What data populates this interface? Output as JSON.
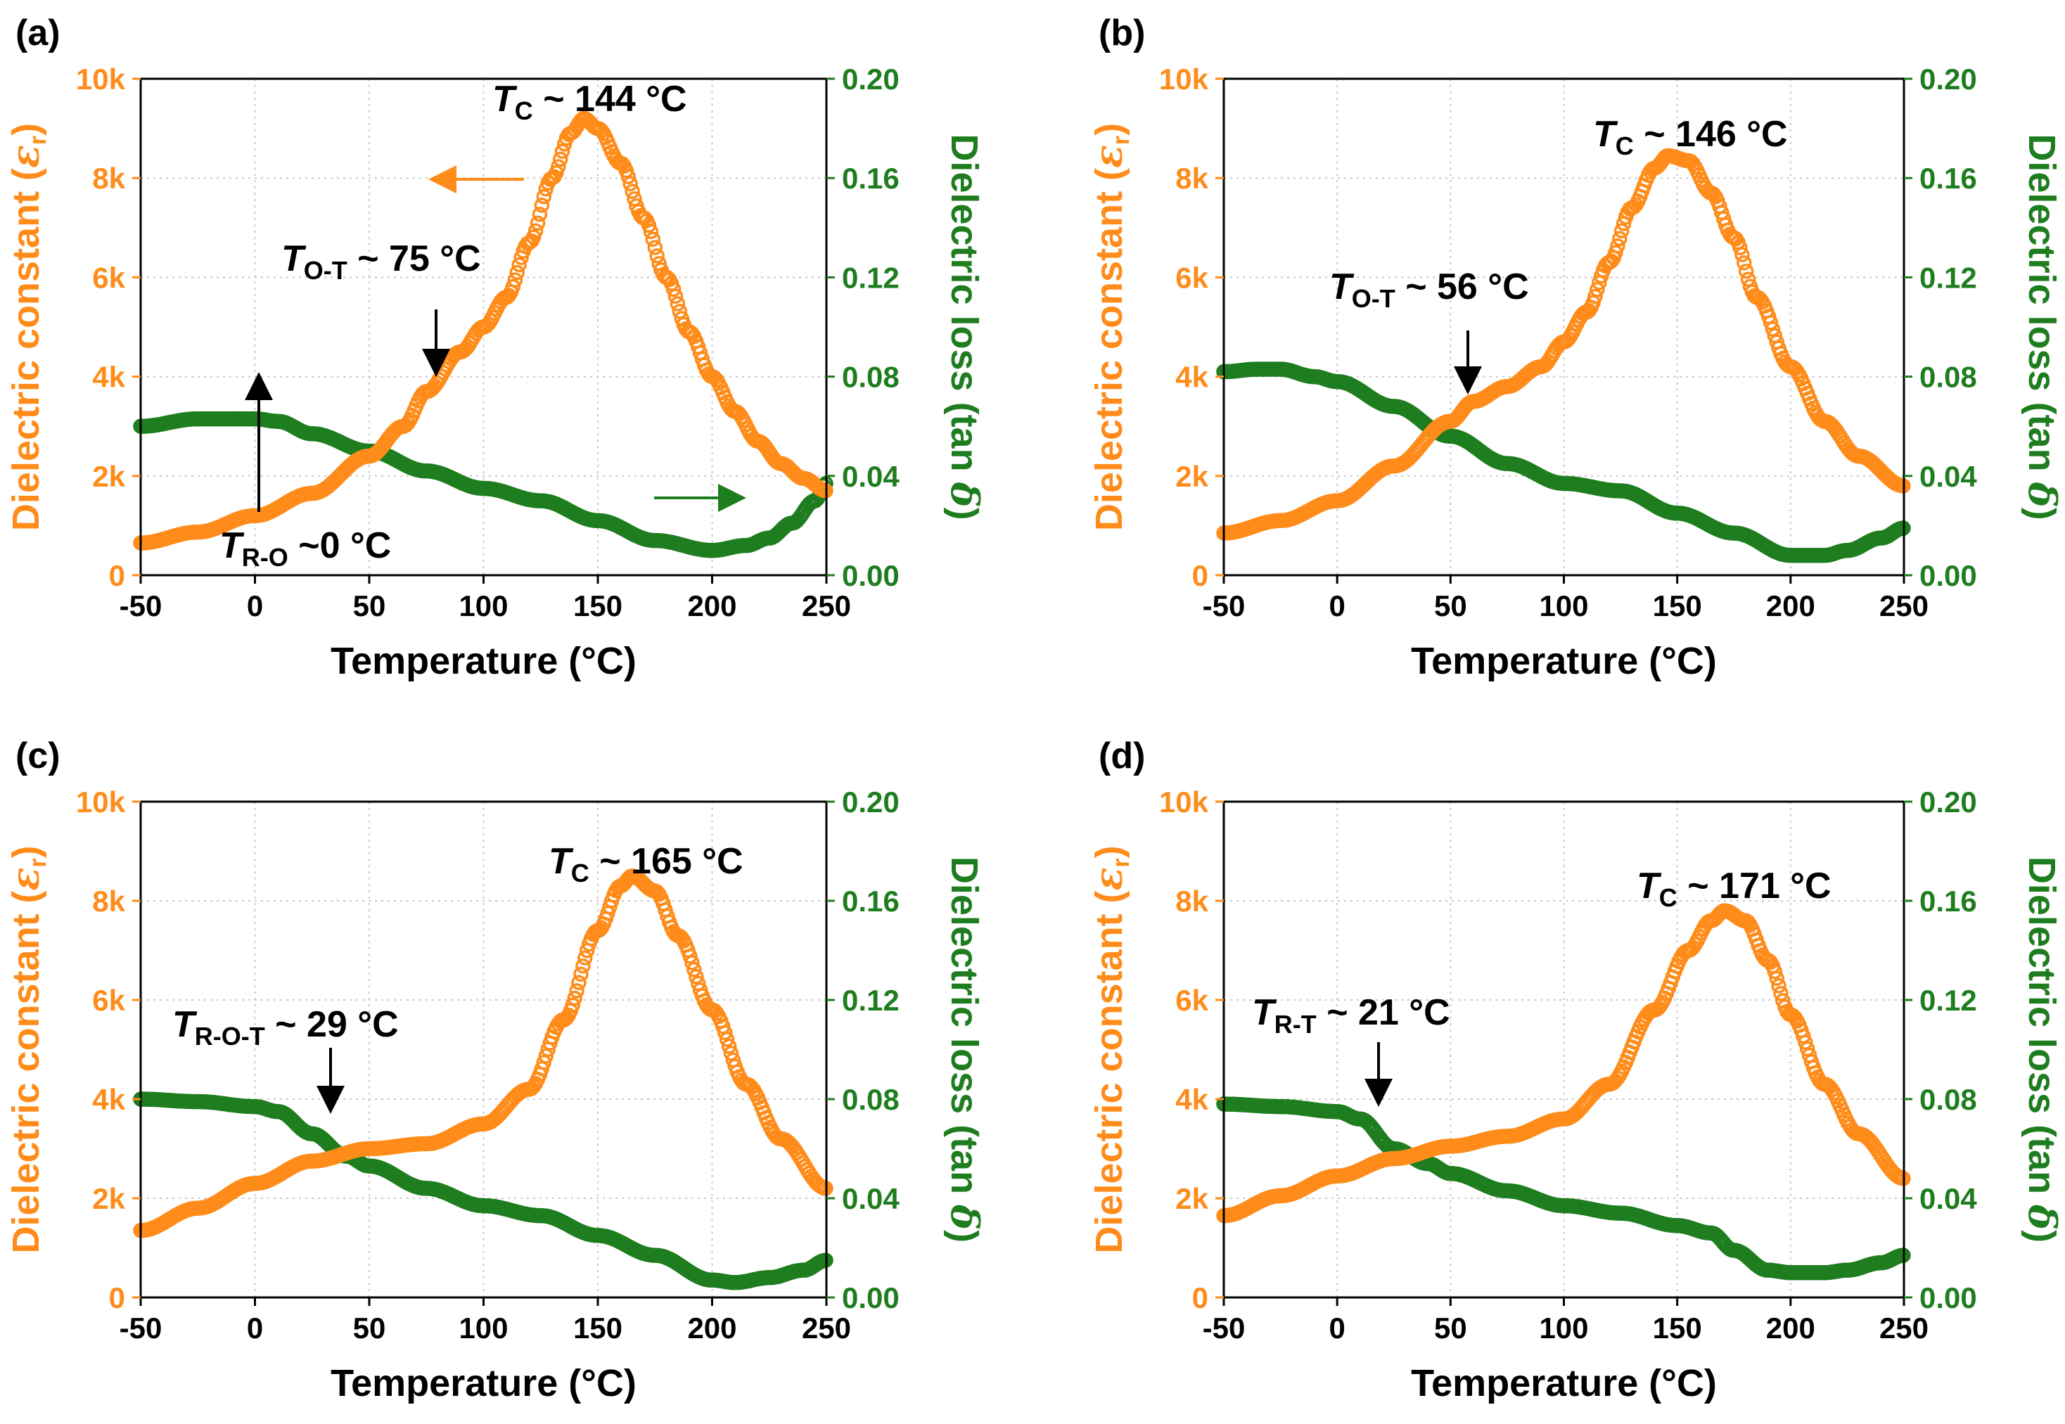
{
  "colors": {
    "eps": "#FF8C1A",
    "loss": "#1E7D1E",
    "axis": "#000000",
    "grid": "#C8C8C8",
    "arrow": "#000000"
  },
  "axes": {
    "x_label": "Temperature (°C)",
    "x_ticks": [
      "-50",
      "0",
      "50",
      "100",
      "150",
      "200",
      "250"
    ],
    "y_left_label_pre": "Dielectric constant (",
    "y_left_symbol": "ε",
    "y_left_sub": "r",
    "y_left_label_post": ")",
    "y_left_ticks": [
      "0",
      "2k",
      "4k",
      "6k",
      "8k",
      "10k"
    ],
    "y_right_label_pre": "Dielectric loss (tan ",
    "y_right_symbol": "δ",
    "y_right_label_post": ")",
    "y_right_ticks": [
      "0.00",
      "0.04",
      "0.08",
      "0.12",
      "0.16",
      "0.20"
    ]
  },
  "chart_data": [
    {
      "type": "scatter",
      "panel": "(a)",
      "xlabel": "Temperature (°C)",
      "xlim": [
        -50,
        250
      ],
      "ylabel_left": "Dielectric constant (εr)",
      "ylim_left": [
        0,
        10000
      ],
      "ylabel_right": "Dielectric loss (tan δ)",
      "ylim_right": [
        0,
        0.2
      ],
      "series": [
        {
          "name": "Dielectric constant",
          "axis": "left",
          "x": [
            -50,
            -25,
            0,
            25,
            50,
            65,
            75,
            90,
            100,
            110,
            120,
            130,
            138,
            144,
            150,
            160,
            170,
            180,
            190,
            200,
            210,
            220,
            230,
            240,
            250
          ],
          "y": [
            650,
            870,
            1200,
            1650,
            2400,
            3000,
            3700,
            4500,
            5000,
            5600,
            6700,
            8000,
            8900,
            9200,
            9000,
            8300,
            7200,
            6000,
            4900,
            4000,
            3300,
            2700,
            2250,
            1950,
            1700
          ]
        },
        {
          "name": "Dielectric loss",
          "axis": "right",
          "x": [
            -50,
            -25,
            0,
            10,
            25,
            50,
            75,
            100,
            125,
            150,
            175,
            200,
            215,
            225,
            235,
            245,
            250
          ],
          "y": [
            0.06,
            0.063,
            0.063,
            0.062,
            0.057,
            0.05,
            0.042,
            0.035,
            0.03,
            0.022,
            0.014,
            0.01,
            0.012,
            0.015,
            0.021,
            0.03,
            0.037
          ]
        }
      ],
      "annotations": [
        {
          "text_main": "T",
          "text_sub": "C",
          "text_rest": " ~ 144 °C"
        },
        {
          "text_main": "T",
          "text_sub": "O-T",
          "text_rest": " ~ 75 °C"
        },
        {
          "text_main": "T",
          "text_sub": "R-O",
          "text_rest": " ~0 °C"
        }
      ]
    },
    {
      "type": "scatter",
      "panel": "(b)",
      "xlabel": "Temperature (°C)",
      "xlim": [
        -50,
        250
      ],
      "ylabel_left": "Dielectric constant (εr)",
      "ylim_left": [
        0,
        10000
      ],
      "ylabel_right": "Dielectric loss (tan δ)",
      "ylim_right": [
        0,
        0.2
      ],
      "series": [
        {
          "name": "Dielectric constant",
          "axis": "left",
          "x": [
            -50,
            -25,
            0,
            25,
            50,
            60,
            75,
            90,
            100,
            110,
            120,
            130,
            140,
            146,
            155,
            165,
            175,
            185,
            200,
            215,
            230,
            250
          ],
          "y": [
            850,
            1100,
            1500,
            2200,
            3100,
            3500,
            3800,
            4200,
            4700,
            5300,
            6300,
            7400,
            8200,
            8450,
            8350,
            7700,
            6800,
            5600,
            4200,
            3100,
            2400,
            1800
          ]
        },
        {
          "name": "Dielectric loss",
          "axis": "right",
          "x": [
            -50,
            -35,
            -25,
            -10,
            0,
            25,
            50,
            75,
            100,
            125,
            150,
            175,
            200,
            215,
            225,
            240,
            250
          ],
          "y": [
            0.082,
            0.083,
            0.083,
            0.08,
            0.078,
            0.068,
            0.056,
            0.045,
            0.037,
            0.034,
            0.025,
            0.017,
            0.008,
            0.008,
            0.01,
            0.015,
            0.019
          ]
        }
      ],
      "annotations": [
        {
          "text_main": "T",
          "text_sub": "C",
          "text_rest": " ~ 146 °C"
        },
        {
          "text_main": "T",
          "text_sub": "O-T",
          "text_rest": " ~ 56 °C"
        }
      ]
    },
    {
      "type": "scatter",
      "panel": "(c)",
      "xlabel": "Temperature (°C)",
      "xlim": [
        -50,
        250
      ],
      "ylabel_left": "Dielectric constant (εr)",
      "ylim_left": [
        0,
        10000
      ],
      "ylabel_right": "Dielectric loss (tan δ)",
      "ylim_right": [
        0,
        0.2
      ],
      "series": [
        {
          "name": "Dielectric constant",
          "axis": "left",
          "x": [
            -50,
            -25,
            0,
            25,
            50,
            75,
            100,
            120,
            135,
            150,
            160,
            165,
            175,
            185,
            200,
            215,
            230,
            250
          ],
          "y": [
            1350,
            1800,
            2300,
            2750,
            3000,
            3100,
            3500,
            4200,
            5600,
            7400,
            8300,
            8500,
            8200,
            7300,
            5800,
            4300,
            3200,
            2200
          ]
        },
        {
          "name": "Dielectric loss",
          "axis": "right",
          "x": [
            -50,
            -25,
            0,
            10,
            25,
            40,
            50,
            75,
            100,
            125,
            150,
            175,
            200,
            210,
            225,
            240,
            250
          ],
          "y": [
            0.08,
            0.079,
            0.077,
            0.075,
            0.066,
            0.057,
            0.053,
            0.044,
            0.037,
            0.033,
            0.025,
            0.017,
            0.007,
            0.006,
            0.008,
            0.011,
            0.015
          ]
        }
      ],
      "annotations": [
        {
          "text_main": "T",
          "text_sub": "C",
          "text_rest": " ~ 165 °C"
        },
        {
          "text_main": "T",
          "text_sub": "R-O-T",
          "text_rest": " ~ 29 °C"
        }
      ]
    },
    {
      "type": "scatter",
      "panel": "(d)",
      "xlabel": "Temperature (°C)",
      "xlim": [
        -50,
        250
      ],
      "ylabel_left": "Dielectric constant (εr)",
      "ylim_left": [
        0,
        10000
      ],
      "ylabel_right": "Dielectric loss (tan δ)",
      "ylim_right": [
        0,
        0.2
      ],
      "series": [
        {
          "name": "Dielectric constant",
          "axis": "left",
          "x": [
            -50,
            -25,
            0,
            25,
            50,
            75,
            100,
            120,
            140,
            155,
            165,
            171,
            180,
            190,
            200,
            215,
            230,
            250
          ],
          "y": [
            1650,
            2050,
            2450,
            2800,
            3050,
            3250,
            3600,
            4300,
            5800,
            7000,
            7600,
            7800,
            7600,
            6800,
            5700,
            4300,
            3300,
            2400
          ]
        },
        {
          "name": "Dielectric loss",
          "axis": "right",
          "x": [
            -50,
            -25,
            0,
            10,
            25,
            40,
            50,
            75,
            100,
            125,
            150,
            165,
            175,
            190,
            200,
            215,
            225,
            240,
            250
          ],
          "y": [
            0.078,
            0.077,
            0.075,
            0.072,
            0.06,
            0.054,
            0.05,
            0.043,
            0.037,
            0.034,
            0.029,
            0.026,
            0.019,
            0.011,
            0.01,
            0.01,
            0.011,
            0.014,
            0.017
          ]
        }
      ],
      "annotations": [
        {
          "text_main": "T",
          "text_sub": "C",
          "text_rest": " ~ 171 °C"
        },
        {
          "text_main": "T",
          "text_sub": "R-T",
          "text_rest": " ~ 21 °C"
        }
      ]
    }
  ]
}
